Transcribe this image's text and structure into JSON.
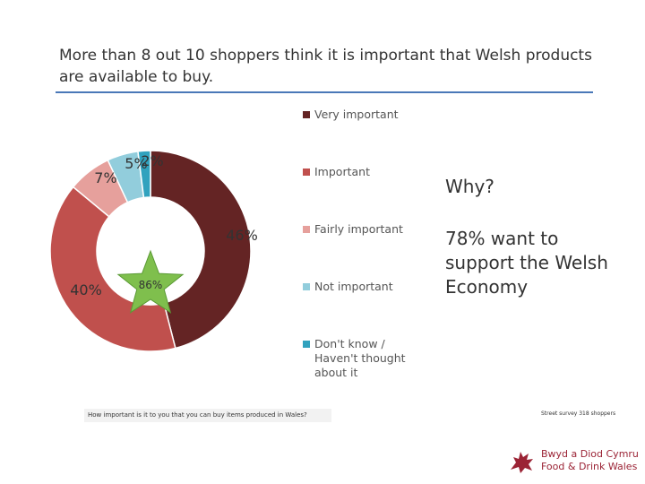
{
  "title": "More than 8 out 10 shoppers think it is important that Welsh products are available to buy.",
  "chart_data": {
    "type": "pie",
    "donut": true,
    "legend_position": "right",
    "series": [
      {
        "name": "Very important",
        "value": 46,
        "label": "46%",
        "color": "#642424"
      },
      {
        "name": "Important",
        "value": 40,
        "label": "40%",
        "color": "#c0504d"
      },
      {
        "name": "Fairly important",
        "value": 7,
        "label": "7%",
        "color": "#e6a09c"
      },
      {
        "name": "Not important",
        "value": 5,
        "label": "5%",
        "color": "#92cddc"
      },
      {
        "name": "Don't know / Haven't thought about it",
        "value": 2,
        "label": "2%",
        "color": "#31a2be"
      }
    ],
    "annotation": {
      "text": "86%",
      "shape": "star",
      "color": "#7fbf4d"
    }
  },
  "side_text": {
    "why": "Why?",
    "support": "78% want to support the Welsh Economy"
  },
  "question": "How important is it to you that you can buy items produced in Wales?",
  "source": "Street survey 318 shoppers",
  "logo": {
    "line1": "Bwyd a Diod Cymru",
    "line2": "Food & Drink Wales",
    "color": "#9b2335",
    "icon": "welsh-dragon-icon"
  }
}
